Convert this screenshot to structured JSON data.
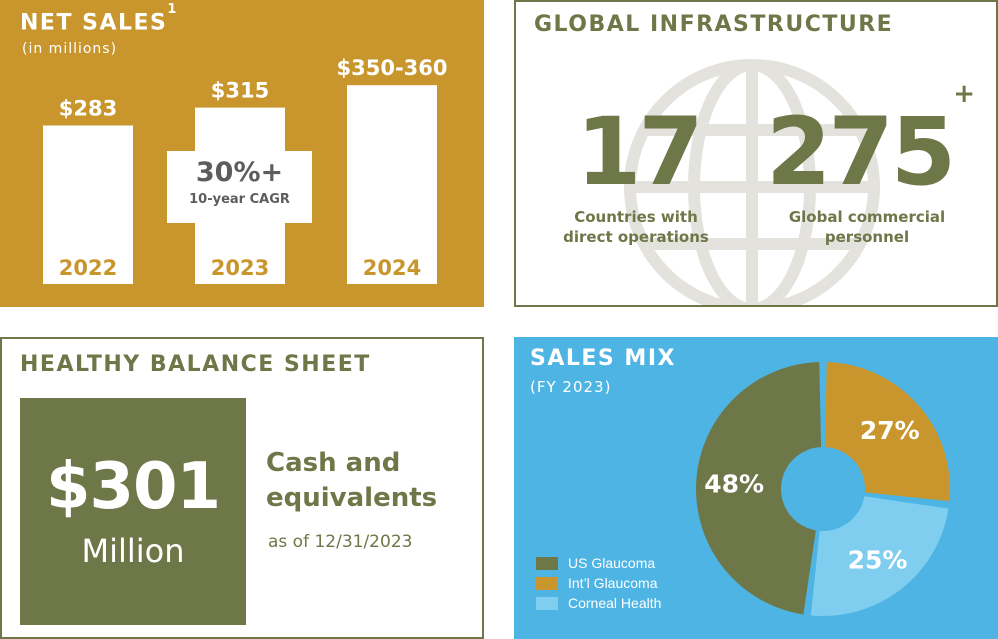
{
  "net_sales": {
    "title": "NET SALES",
    "footnote": "1",
    "subtitle": "(in millions)",
    "cagr_value": "30%+",
    "cagr_label": "10-year CAGR"
  },
  "global_infrastructure": {
    "title": "GLOBAL INFRASTRUCTURE",
    "countries_value": "17",
    "countries_label_line1": "Countries with",
    "countries_label_line2": "direct operations",
    "personnel_value": "275",
    "personnel_suffix": "+",
    "personnel_label_line1": "Global commercial",
    "personnel_label_line2": "personnel"
  },
  "balance_sheet": {
    "title": "HEALTHY BALANCE SHEET",
    "amount": "$301",
    "unit": "Million",
    "desc_line1": "Cash and",
    "desc_line2": "equivalents",
    "date": "as of 12/31/2023"
  },
  "sales_mix": {
    "title": "SALES MIX",
    "subtitle": "(FY 2023)"
  },
  "colors": {
    "gold": "#c8962c",
    "olive": "#6e7747",
    "sky": "#4db4e4",
    "light_blue": "#7fcdef",
    "white": "#ffffff"
  },
  "chart_data": [
    {
      "type": "bar",
      "title": "NET SALES",
      "subtitle": "(in millions)",
      "categories": [
        "2022",
        "2023",
        "2024"
      ],
      "values": [
        283,
        315,
        355
      ],
      "value_labels": [
        "$283",
        "$315",
        "$350-360"
      ],
      "ylim": [
        0,
        400
      ]
    },
    {
      "type": "pie",
      "title": "SALES MIX",
      "subtitle": "(FY 2023)",
      "labels": [
        "US Glaucoma",
        "Int'l Glaucoma",
        "Corneal Health"
      ],
      "legend_labels": [
        "US Glaucoma",
        "Int’l Glaucoma",
        "Corneal Health"
      ],
      "values": [
        48,
        27,
        25
      ],
      "value_labels": [
        "48%",
        "27%",
        "25%"
      ],
      "colors": [
        "#6e7747",
        "#c8962c",
        "#7fcdef"
      ],
      "donut": true,
      "legend_position": "bottom-left"
    }
  ]
}
